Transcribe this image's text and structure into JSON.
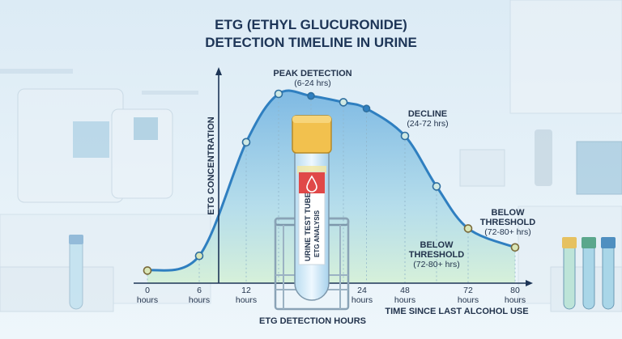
{
  "title_line1": "ETG (ETHYL GLUCURONIDE)",
  "title_line2": "DETECTION TIMELINE IN URINE",
  "tube_label_line1": "URINE TEST TUBE",
  "tube_label_line2": "ETG ANALYSIS",
  "colors": {
    "curve": "#2f7fc0",
    "fill_top": "#7fbde6",
    "fill_bottom": "#d6f0d8",
    "title": "#1d3557",
    "cap": "#f2c14e",
    "tube_label": "#e04848"
  },
  "chart_data": {
    "type": "area",
    "xlabel": "TIME SINCE LAST ALCOHOL USE",
    "ylabel": "ETG CONCENTRATION",
    "subtitle_below": "ETG DETECTION HOURS",
    "x_ticks": [
      {
        "value": 0,
        "label": "0",
        "unit": "hours"
      },
      {
        "value": 6,
        "label": "6",
        "unit": "hours"
      },
      {
        "value": 12,
        "label": "12",
        "unit": "hours"
      },
      {
        "value": 24,
        "label": "24",
        "unit": "hours"
      },
      {
        "value": 48,
        "label": "48",
        "unit": "hours"
      },
      {
        "value": 72,
        "label": "72",
        "unit": "hours"
      },
      {
        "value": 80,
        "label": "80",
        "unit": "hours"
      }
    ],
    "ylim": [
      0,
      100
    ],
    "y_ticks_shown": false,
    "points": [
      {
        "x": 0,
        "y": 6
      },
      {
        "x": 6,
        "y": 13
      },
      {
        "x": 12,
        "y": 67
      },
      {
        "x": 16,
        "y": 90
      },
      {
        "x": 20,
        "y": 89
      },
      {
        "x": 24,
        "y": 86
      },
      {
        "x": 33,
        "y": 83
      },
      {
        "x": 48,
        "y": 70
      },
      {
        "x": 60,
        "y": 46
      },
      {
        "x": 72,
        "y": 26
      },
      {
        "x": 80,
        "y": 17
      }
    ],
    "annotations": [
      {
        "id": "peak",
        "lines": [
          "PEAK DETECTION",
          "(6-24 hrs)"
        ]
      },
      {
        "id": "decline",
        "lines": [
          "DECLINE",
          "(24-72 hrs)"
        ]
      },
      {
        "id": "below1",
        "lines": [
          "BELOW",
          "THRESHOLD",
          "(72-80+ hrs)"
        ]
      },
      {
        "id": "below2",
        "lines": [
          "BELOW",
          "THRESHOLD",
          "(72-80+ hrs)"
        ]
      }
    ]
  }
}
